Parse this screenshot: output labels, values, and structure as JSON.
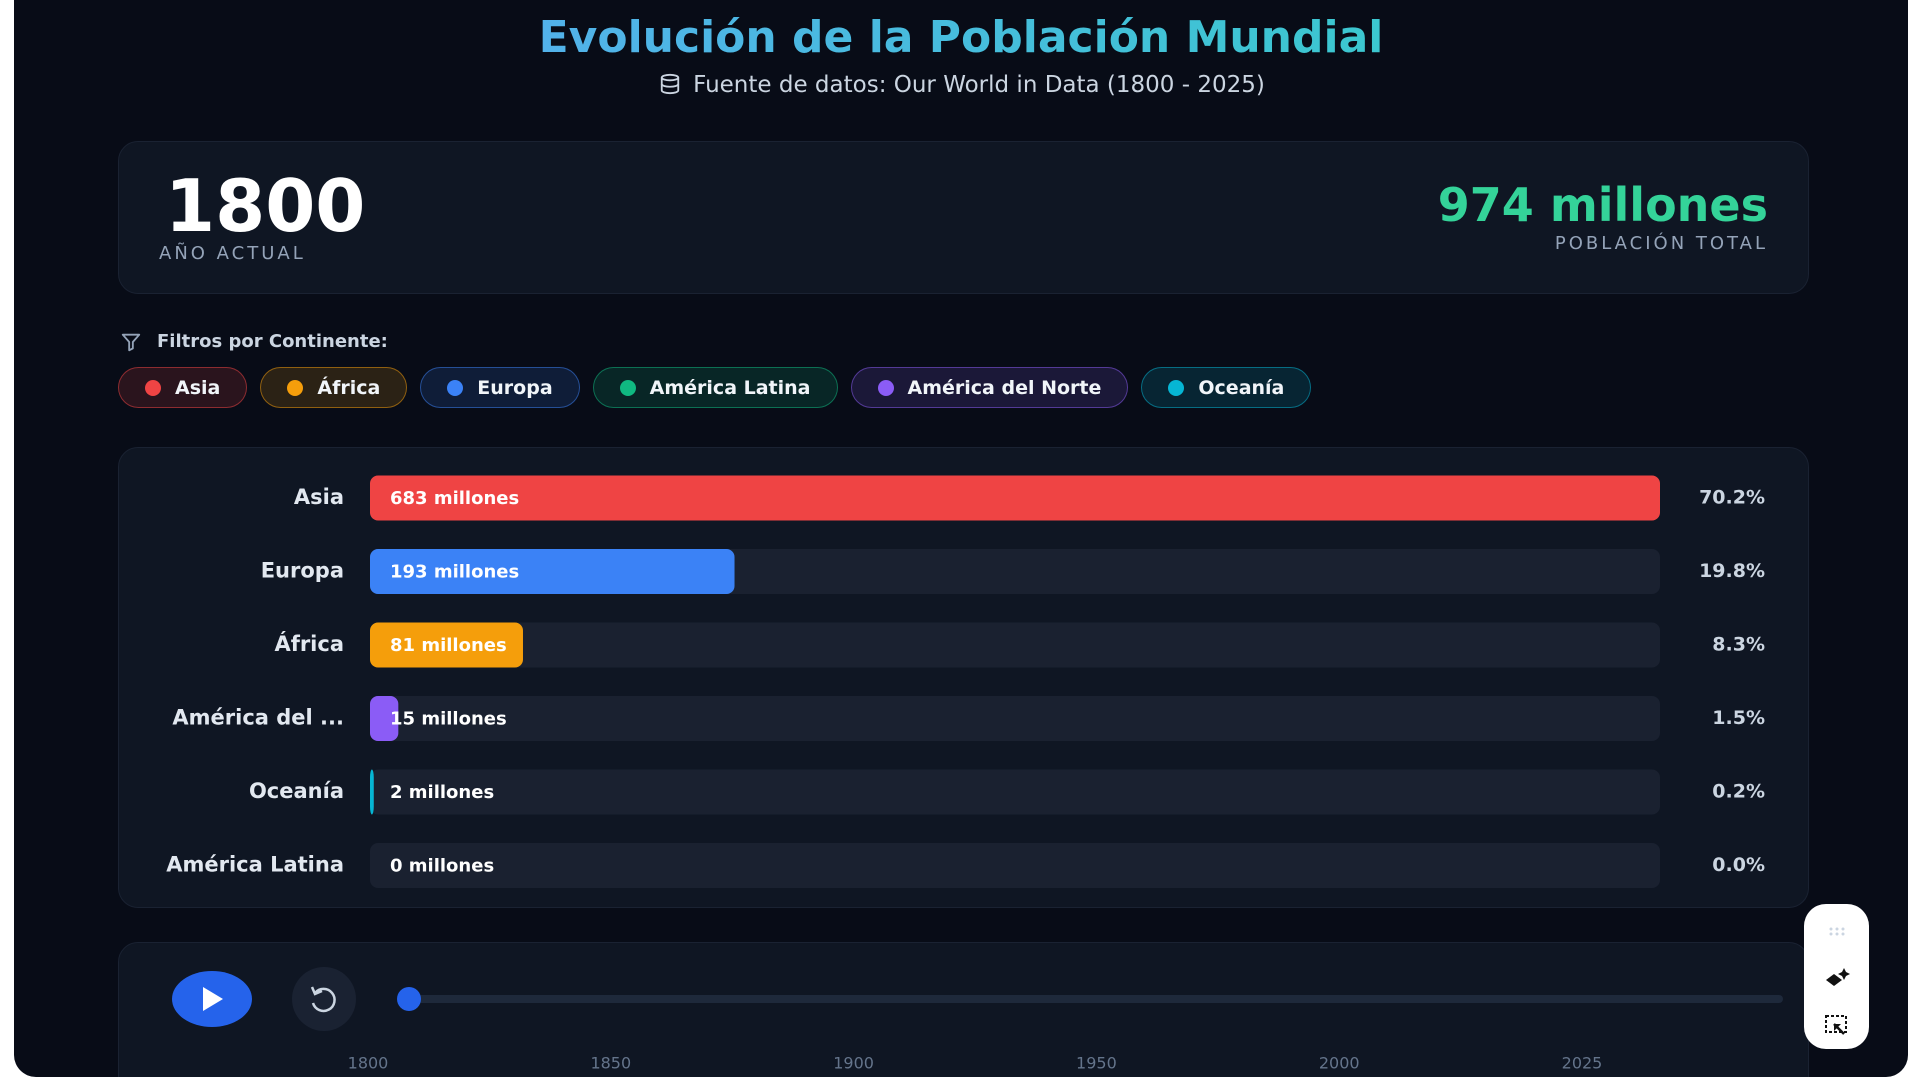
{
  "header": {
    "title": "Evolución de la Población Mundial",
    "subtitle": "Fuente de datos: Our World in Data (1800 - 2025)"
  },
  "stats": {
    "year": 1800,
    "year_label": "AÑO ACTUAL",
    "total": "974 millones",
    "total_label": "POBLACIÓN TOTAL"
  },
  "filters": {
    "label": "Filtros por Continente:",
    "items": [
      {
        "name": "Asia",
        "color": "#ef4444"
      },
      {
        "name": "África",
        "color": "#f59e0b"
      },
      {
        "name": "Europa",
        "color": "#3b82f6"
      },
      {
        "name": "América Latina",
        "color": "#10b981"
      },
      {
        "name": "América del Norte",
        "color": "#8b5cf6"
      },
      {
        "name": "Oceanía",
        "color": "#06b6d4"
      }
    ]
  },
  "chart_data": {
    "type": "bar",
    "orientation": "horizontal",
    "categories": [
      "Asia",
      "Europa",
      "África",
      "América del ...",
      "Oceanía",
      "América Latina"
    ],
    "values": [
      683,
      193,
      81,
      15,
      2,
      0
    ],
    "value_labels": [
      "683 millones",
      "193 millones",
      "81 millones",
      "15 millones",
      "2 millones",
      "0 millones"
    ],
    "shares": [
      "70.2%",
      "19.8%",
      "8.3%",
      "1.5%",
      "0.2%",
      "0.0%"
    ],
    "colors": [
      "#ef4444",
      "#3b82f6",
      "#f59e0b",
      "#8b5cf6",
      "#06b6d4",
      "#10b981"
    ],
    "xlim": [
      0,
      683
    ]
  },
  "timeline": {
    "range": [
      1800,
      2025
    ],
    "value": 1800,
    "ticks": [
      1800,
      1850,
      1900,
      1950,
      2000,
      2025
    ]
  }
}
